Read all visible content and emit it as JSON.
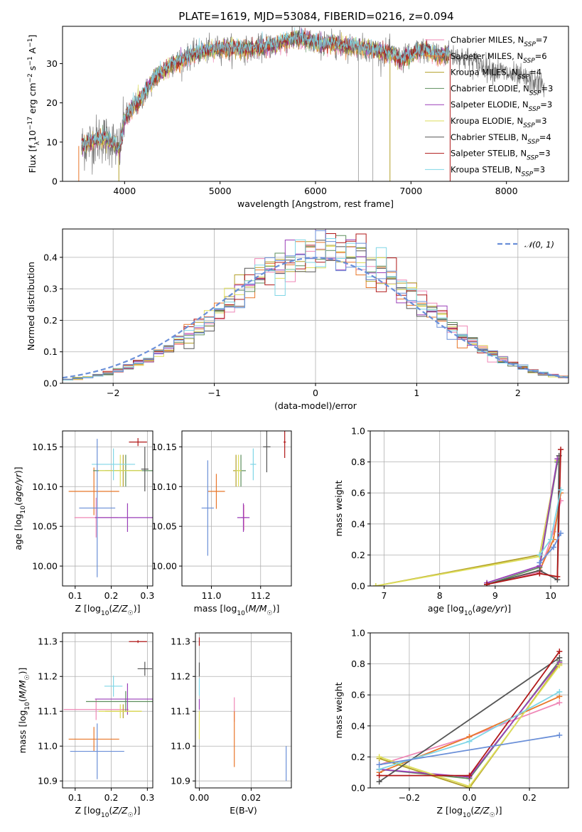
{
  "figure": {
    "title": "PLATE=1619, MJD=53084, FIBERID=0216, z=0.094"
  },
  "colors": {
    "Chabrier MILES": "#ef87b6",
    "Salpeter MILES": "#e8772a",
    "Kroupa MILES": "#b3a02a",
    "Chabrier ELODIE": "#5d8f5d",
    "Salpeter ELODIE": "#9a3fb8",
    "Kroupa ELODIE": "#dede5a",
    "Chabrier STELIB": "#555555",
    "Salpeter STELIB": "#b01818",
    "Kroupa STELIB": "#7fd6e6",
    "gaussian": "#6a8fd8",
    "extra_blue": "#6a8fd8"
  },
  "chart_data": [
    {
      "id": "spectrum",
      "type": "line",
      "xlabel": "wavelength [Angstrom, rest frame]",
      "ylabel": "Flux [f_λ 10^-17 erg cm^-2 s^-1 A^-1]",
      "xlim": [
        3350,
        8650
      ],
      "ylim": [
        0,
        39.5
      ],
      "xticks": [
        4000,
        5000,
        6000,
        7000,
        8000
      ],
      "yticks": [
        0,
        10,
        20,
        30
      ],
      "grid": false,
      "legend_position": "right",
      "legend": [
        {
          "name": "Chabrier MILES",
          "nssp": "7"
        },
        {
          "name": "Salpeter MILES",
          "nssp": "6"
        },
        {
          "name": "Kroupa MILES",
          "nssp": "4"
        },
        {
          "name": "Chabrier ELODIE",
          "nssp": "3"
        },
        {
          "name": "Salpeter ELODIE",
          "nssp": "3"
        },
        {
          "name": "Kroupa ELODIE",
          "nssp": "3"
        },
        {
          "name": "Chabrier STELIB",
          "nssp": "4"
        },
        {
          "name": "Salpeter STELIB",
          "nssp": "3"
        },
        {
          "name": "Kroupa STELIB",
          "nssp": "3"
        }
      ],
      "continuum_x": [
        3550,
        3650,
        3750,
        3850,
        3950,
        4000,
        4100,
        4200,
        4300,
        4400,
        4500,
        4600,
        4700,
        4800,
        4900,
        5000,
        5100,
        5200,
        5300,
        5400,
        5500,
        5600,
        5700,
        5800,
        5900,
        6000,
        6100,
        6200,
        6300,
        6400,
        6500,
        6600,
        6700,
        6800,
        6900,
        7000,
        7100,
        7200,
        7300,
        7400
      ],
      "continuum_y": [
        9,
        10,
        11,
        10.5,
        8,
        16,
        19,
        22,
        26,
        28,
        30,
        31,
        32,
        33,
        33.5,
        34,
        34,
        34,
        33.5,
        34,
        34.5,
        35,
        36,
        36.5,
        36,
        35,
        35,
        35,
        34.5,
        34.5,
        34,
        33.5,
        33,
        32.5,
        31,
        32,
        33.5,
        33,
        32,
        32.5
      ],
      "extended_x": [
        7400,
        7600,
        7800,
        8000,
        8200,
        8400
      ],
      "extended_y": [
        32,
        31,
        29,
        27.5,
        26,
        24.5
      ],
      "drop_lines": [
        3520,
        3940,
        6450,
        6600,
        6780,
        7410
      ]
    },
    {
      "id": "residuals",
      "type": "step",
      "xlabel": "(data-model)/error",
      "ylabel": "Normed distribution",
      "xlim": [
        -2.5,
        2.5
      ],
      "ylim": [
        0,
        0.49
      ],
      "xticks": [
        -2,
        -1,
        0,
        1,
        2
      ],
      "yticks": [
        0.0,
        0.1,
        0.2,
        0.3,
        0.4
      ],
      "grid": true,
      "legend_position": "top-right",
      "legend": [
        {
          "name": "𝒩(0, 1)"
        }
      ]
    },
    {
      "id": "age-vs-z",
      "type": "scatter",
      "xlabel": "Z [log10(Z/Z☉)]",
      "ylabel": "age [log10(age/yr)]",
      "xlim": [
        0.065,
        0.315
      ],
      "ylim": [
        9.975,
        10.17
      ],
      "xticks": [
        0.1,
        0.2,
        0.3
      ],
      "yticks": [
        10.0,
        10.05,
        10.1,
        10.15
      ],
      "grid": true,
      "points": [
        {
          "series": "Chabrier MILES",
          "x": 0.158,
          "y": 10.061,
          "xerr": 0.06,
          "yerr": 0.025
        },
        {
          "series": "Salpeter MILES",
          "x": 0.152,
          "y": 10.094,
          "xerr": 0.07,
          "yerr": 0.03
        },
        {
          "series": "Kroupa MILES",
          "x": 0.233,
          "y": 10.12,
          "xerr": 0.05,
          "yerr": 0.02
        },
        {
          "series": "Chabrier ELODIE",
          "x": 0.24,
          "y": 10.12,
          "xerr": 0.09,
          "yerr": 0.02
        },
        {
          "series": "Salpeter ELODIE",
          "x": 0.245,
          "y": 10.061,
          "xerr": 0.09,
          "yerr": 0.018
        },
        {
          "series": "Kroupa ELODIE",
          "x": 0.225,
          "y": 10.12,
          "xerr": 0.06,
          "yerr": 0.02
        },
        {
          "series": "Chabrier STELIB",
          "x": 0.293,
          "y": 10.122,
          "xerr": 0.01,
          "yerr": 0.028
        },
        {
          "series": "Salpeter STELIB",
          "x": 0.274,
          "y": 10.156,
          "xerr": 0.025,
          "yerr": 0.005
        },
        {
          "series": "Kroupa STELIB",
          "x": 0.206,
          "y": 10.128,
          "xerr": 0.06,
          "yerr": 0.02
        },
        {
          "series": "extra_blue",
          "x": 0.161,
          "y": 10.073,
          "xerr": 0.05,
          "yerr": 0.087
        }
      ]
    },
    {
      "id": "age-vs-mass",
      "type": "scatter",
      "xlabel": "mass [log10(M/M☉)]",
      "ylabel": "",
      "xlim": [
        10.88,
        11.325
      ],
      "ylim": [
        9.975,
        10.17
      ],
      "xticks": [
        11.0,
        11.2
      ],
      "yticks": [
        10.0,
        10.05,
        10.1,
        10.15
      ],
      "grid": true,
      "points": [
        {
          "series": "Chabrier MILES",
          "x": 11.132,
          "y": 10.061,
          "xerr": 0.012,
          "yerr": 0.016
        },
        {
          "series": "Salpeter MILES",
          "x": 11.02,
          "y": 10.094,
          "xerr": 0.035,
          "yerr": 0.022
        },
        {
          "series": "Kroupa MILES",
          "x": 11.1,
          "y": 10.12,
          "xerr": 0.012,
          "yerr": 0.02
        },
        {
          "series": "Chabrier ELODIE",
          "x": 11.12,
          "y": 10.12,
          "xerr": 0.02,
          "yerr": 0.02
        },
        {
          "series": "Salpeter ELODIE",
          "x": 11.13,
          "y": 10.061,
          "xerr": 0.025,
          "yerr": 0.018
        },
        {
          "series": "Kroupa ELODIE",
          "x": 11.11,
          "y": 10.12,
          "xerr": 0.012,
          "yerr": 0.02
        },
        {
          "series": "Chabrier STELIB",
          "x": 11.225,
          "y": 10.15,
          "xerr": 0.015,
          "yerr": 0.032
        },
        {
          "series": "Salpeter STELIB",
          "x": 11.298,
          "y": 10.156,
          "xerr": 0.005,
          "yerr": 0.02
        },
        {
          "series": "Kroupa STELIB",
          "x": 11.17,
          "y": 10.128,
          "xerr": 0.012,
          "yerr": 0.02
        },
        {
          "series": "extra_blue",
          "x": 10.985,
          "y": 10.073,
          "xerr": 0.025,
          "yerr": 0.06
        }
      ]
    },
    {
      "id": "mass-weight-vs-age",
      "type": "line",
      "xlabel": "age [log10(age/yr)]",
      "ylabel": "mass weight",
      "xlim": [
        6.75,
        10.32
      ],
      "ylim": [
        0,
        1.0
      ],
      "xticks": [
        7,
        8,
        9,
        10
      ],
      "yticks": [
        0.0,
        0.2,
        0.4,
        0.6,
        0.8,
        1.0
      ],
      "grid": true,
      "series": [
        {
          "name": "Kroupa MILES",
          "x": [
            6.85,
            9.8,
            10.12
          ],
          "y": [
            0.0,
            0.2,
            0.8
          ]
        },
        {
          "name": "Kroupa ELODIE",
          "x": [
            6.85,
            9.8,
            10.12
          ],
          "y": [
            0.0,
            0.19,
            0.81
          ]
        },
        {
          "name": "Chabrier MILES",
          "x": [
            8.85,
            9.8,
            10.05,
            10.18
          ],
          "y": [
            0.01,
            0.09,
            0.35,
            0.55
          ]
        },
        {
          "name": "Salpeter MILES",
          "x": [
            8.85,
            9.8,
            10.05,
            10.18
          ],
          "y": [
            0.01,
            0.1,
            0.3,
            0.6
          ]
        },
        {
          "name": "Chabrier ELODIE",
          "x": [
            8.85,
            9.8,
            10.12
          ],
          "y": [
            0.01,
            0.12,
            0.8
          ]
        },
        {
          "name": "Salpeter ELODIE",
          "x": [
            8.85,
            9.8,
            10.12
          ],
          "y": [
            0.02,
            0.13,
            0.82
          ]
        },
        {
          "name": "Chabrier STELIB",
          "x": [
            8.85,
            9.8,
            10.12,
            10.15
          ],
          "y": [
            0.01,
            0.1,
            0.04,
            0.84
          ]
        },
        {
          "name": "Salpeter STELIB",
          "x": [
            8.85,
            9.8,
            10.12,
            10.18
          ],
          "y": [
            0.01,
            0.08,
            0.06,
            0.88
          ]
        },
        {
          "name": "Kroupa STELIB",
          "x": [
            9.8,
            10.0,
            10.18
          ],
          "y": [
            0.2,
            0.3,
            0.62
          ]
        },
        {
          "name": "extra_blue",
          "x": [
            9.8,
            10.05,
            10.18
          ],
          "y": [
            0.15,
            0.25,
            0.34
          ]
        }
      ]
    },
    {
      "id": "mass-vs-z",
      "type": "scatter",
      "xlabel": "Z [log10(Z/Z☉)]",
      "ylabel": "mass [log10(M/M☉)]",
      "xlim": [
        0.065,
        0.315
      ],
      "ylim": [
        10.88,
        11.325
      ],
      "xticks": [
        0.1,
        0.2,
        0.3
      ],
      "yticks": [
        10.9,
        11.0,
        11.1,
        11.2,
        11.3
      ],
      "grid": true,
      "points": [
        {
          "series": "Chabrier MILES",
          "x": 0.158,
          "y": 11.105,
          "xerr": 0.09,
          "yerr": 0.03
        },
        {
          "series": "Salpeter MILES",
          "x": 0.152,
          "y": 11.02,
          "xerr": 0.07,
          "yerr": 0.035
        },
        {
          "series": "Kroupa MILES",
          "x": 0.233,
          "y": 11.1,
          "xerr": 0.05,
          "yerr": 0.02
        },
        {
          "series": "Chabrier ELODIE",
          "x": 0.24,
          "y": 11.128,
          "xerr": 0.11,
          "yerr": 0.03
        },
        {
          "series": "Salpeter ELODIE",
          "x": 0.245,
          "y": 11.135,
          "xerr": 0.09,
          "yerr": 0.045
        },
        {
          "series": "Kroupa ELODIE",
          "x": 0.225,
          "y": 11.1,
          "xerr": 0.06,
          "yerr": 0.02
        },
        {
          "series": "Chabrier STELIB",
          "x": 0.293,
          "y": 11.222,
          "xerr": 0.02,
          "yerr": 0.02
        },
        {
          "series": "Salpeter STELIB",
          "x": 0.274,
          "y": 11.3,
          "xerr": 0.025,
          "yerr": 0.004
        },
        {
          "series": "Kroupa STELIB",
          "x": 0.206,
          "y": 11.172,
          "xerr": 0.025,
          "yerr": 0.03
        },
        {
          "series": "extra_blue",
          "x": 0.161,
          "y": 10.985,
          "xerr": 0.075,
          "yerr": 0.08
        }
      ]
    },
    {
      "id": "mass-vs-ebv",
      "type": "scatter",
      "xlabel": "E(B-V)",
      "ylabel": "",
      "xlim": [
        -0.0015,
        0.0355
      ],
      "ylim": [
        10.88,
        11.325
      ],
      "xticks": [
        0.0,
        0.02
      ],
      "yticks": [
        10.9,
        11.0,
        11.1,
        11.2,
        11.3
      ],
      "grid": true,
      "points": [
        {
          "series": "Chabrier MILES",
          "x": 0.0135,
          "y": 11.105,
          "xerr": 0,
          "yerr": 0.035
        },
        {
          "series": "Salpeter MILES",
          "x": 0.0135,
          "y": 11.02,
          "xerr": 0,
          "yerr": 0.08
        },
        {
          "series": "Kroupa ELODIE",
          "x": 0.0,
          "y": 11.06,
          "xerr": 0,
          "yerr": 0.04
        },
        {
          "series": "Salpeter ELODIE",
          "x": 0.0,
          "y": 11.12,
          "xerr": 0,
          "yerr": 0.015
        },
        {
          "series": "Chabrier STELIB",
          "x": 0.0,
          "y": 11.22,
          "xerr": 0,
          "yerr": 0.02
        },
        {
          "series": "Salpeter STELIB",
          "x": 0.0,
          "y": 11.3,
          "xerr": 0,
          "yerr": 0.012
        },
        {
          "series": "Kroupa STELIB",
          "x": 0.0,
          "y": 11.17,
          "xerr": 0,
          "yerr": 0.025
        },
        {
          "series": "extra_blue",
          "x": 0.0335,
          "y": 10.95,
          "xerr": 0,
          "yerr": 0.05
        }
      ]
    },
    {
      "id": "mass-weight-vs-z",
      "type": "line",
      "xlabel": "Z [log10(Z/Z☉)]",
      "ylabel": "mass weight",
      "xlim": [
        -0.33,
        0.33
      ],
      "ylim": [
        0,
        1.0
      ],
      "xticks": [
        -0.2,
        0.0,
        0.2
      ],
      "yticks": [
        0.0,
        0.2,
        0.4,
        0.6,
        0.8,
        1.0
      ],
      "grid": true,
      "series": [
        {
          "name": "Chabrier MILES",
          "x": [
            -0.3,
            0.0,
            0.3
          ],
          "y": [
            0.15,
            0.33,
            0.55
          ]
        },
        {
          "name": "Salpeter MILES",
          "x": [
            -0.3,
            0.0,
            0.3
          ],
          "y": [
            0.1,
            0.33,
            0.59
          ]
        },
        {
          "name": "Kroupa MILES",
          "x": [
            -0.3,
            0.0,
            0.3
          ],
          "y": [
            0.19,
            0.0,
            0.8
          ]
        },
        {
          "name": "Chabrier ELODIE",
          "x": [
            -0.3,
            0.0,
            0.3
          ],
          "y": [
            0.12,
            0.06,
            0.82
          ]
        },
        {
          "name": "Salpeter ELODIE",
          "x": [
            -0.3,
            0.0,
            0.3
          ],
          "y": [
            0.12,
            0.07,
            0.81
          ]
        },
        {
          "name": "Kroupa ELODIE",
          "x": [
            -0.3,
            0.0,
            0.3
          ],
          "y": [
            0.2,
            0.01,
            0.79
          ]
        },
        {
          "name": "Chabrier STELIB",
          "x": [
            -0.3,
            0.3
          ],
          "y": [
            0.04,
            0.84
          ]
        },
        {
          "name": "Salpeter STELIB",
          "x": [
            -0.3,
            0.0,
            0.3
          ],
          "y": [
            0.08,
            0.08,
            0.88
          ]
        },
        {
          "name": "Kroupa STELIB",
          "x": [
            -0.3,
            0.0,
            0.3
          ],
          "y": [
            0.12,
            0.3,
            0.62
          ]
        },
        {
          "name": "extra_blue",
          "x": [
            -0.3,
            0.3
          ],
          "y": [
            0.15,
            0.34
          ]
        }
      ]
    }
  ]
}
